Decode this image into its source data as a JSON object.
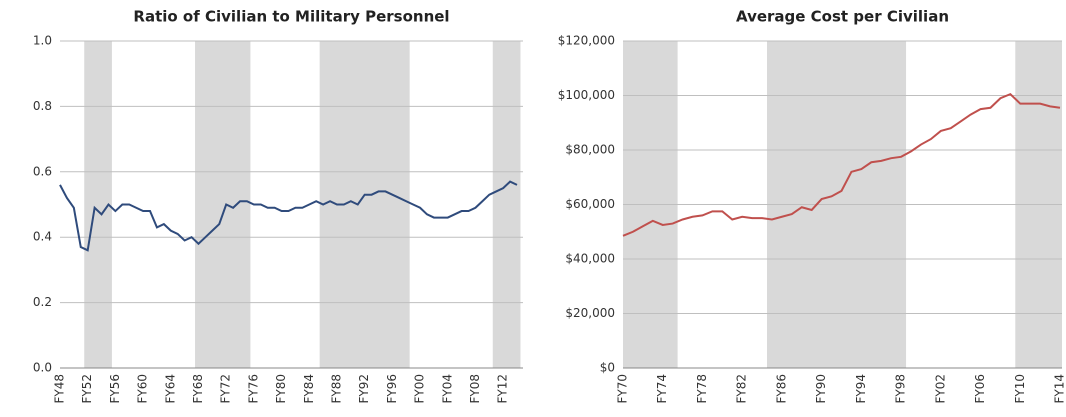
{
  "chart_data": [
    {
      "type": "line",
      "title": "Ratio of Civilian to Military Personnel",
      "categories": [
        "FY48",
        null,
        null,
        null,
        "FY52",
        null,
        null,
        null,
        "FY56",
        null,
        null,
        null,
        "FY60",
        null,
        null,
        null,
        "FY64",
        null,
        null,
        null,
        "FY68",
        null,
        null,
        null,
        "FY72",
        null,
        null,
        null,
        "FY76",
        null,
        null,
        null,
        "FY80",
        null,
        null,
        null,
        "FY84",
        null,
        null,
        null,
        "FY88",
        null,
        null,
        null,
        "FY92",
        null,
        null,
        null,
        "FY96",
        null,
        null,
        null,
        "FY00",
        null,
        null,
        null,
        "FY04",
        null,
        null,
        null,
        "FY08",
        null,
        null,
        null,
        "FY12",
        null,
        null
      ],
      "series": [
        {
          "color": "#2f4b7c",
          "values": [
            0.56,
            0.52,
            0.49,
            0.37,
            0.36,
            0.49,
            0.47,
            0.5,
            0.48,
            0.5,
            0.5,
            0.49,
            0.48,
            0.48,
            0.43,
            0.44,
            0.42,
            0.41,
            0.39,
            0.4,
            0.38,
            0.4,
            0.42,
            0.44,
            0.5,
            0.49,
            0.51,
            0.51,
            0.5,
            0.5,
            0.49,
            0.49,
            0.48,
            0.48,
            0.49,
            0.49,
            0.5,
            0.51,
            0.5,
            0.51,
            0.5,
            0.5,
            0.51,
            0.5,
            0.53,
            0.53,
            0.54,
            0.54,
            0.53,
            0.52,
            0.51,
            0.5,
            0.49,
            0.47,
            0.46,
            0.46,
            0.46,
            0.47,
            0.48,
            0.48,
            0.49,
            0.51,
            0.53,
            0.54,
            0.55,
            0.57,
            0.56
          ]
        }
      ],
      "shaded_ranges": [
        [
          4,
          7
        ],
        [
          20,
          27
        ],
        [
          38,
          50
        ],
        [
          63,
          66
        ]
      ],
      "ylim": [
        0,
        1
      ],
      "yticks": [
        {
          "value": 0,
          "label": "0.0"
        },
        0.2,
        0.4,
        0.6,
        0.8,
        {
          "value": 1,
          "label": "1.0"
        }
      ],
      "grid": true
    },
    {
      "type": "line",
      "title": "Average Cost per Civilian",
      "categories": [
        "FY70",
        null,
        null,
        null,
        "FY74",
        null,
        null,
        null,
        "FY78",
        null,
        null,
        null,
        "FY82",
        null,
        null,
        null,
        "FY86",
        null,
        null,
        null,
        "FY90",
        null,
        null,
        null,
        "FY94",
        null,
        null,
        null,
        "FY98",
        null,
        null,
        null,
        "FY02",
        null,
        null,
        null,
        "FY06",
        null,
        null,
        null,
        "FY10",
        null,
        null,
        null,
        "FY14"
      ],
      "series": [
        {
          "color": "#c0504d",
          "values": [
            48500,
            50000,
            52000,
            54000,
            52500,
            53000,
            54500,
            55500,
            56000,
            57500,
            57500,
            54500,
            55500,
            55000,
            55000,
            54500,
            55500,
            56500,
            59000,
            58000,
            62000,
            63000,
            65000,
            72000,
            73000,
            75500,
            76000,
            77000,
            77500,
            79500,
            82000,
            84000,
            87000,
            88000,
            90500,
            93000,
            95000,
            95500,
            99000,
            100500,
            97000,
            97000,
            97000,
            96000,
            95500
          ]
        }
      ],
      "shaded_ranges": [
        [
          0,
          5
        ],
        [
          15,
          28
        ],
        [
          40,
          44
        ]
      ],
      "ylim": [
        0,
        120000
      ],
      "yticks": [
        {
          "value": 0,
          "label": "$0"
        },
        {
          "value": 20000,
          "label": "$20,000"
        },
        {
          "value": 40000,
          "label": "$40,000"
        },
        {
          "value": 60000,
          "label": "$60,000"
        },
        {
          "value": 80000,
          "label": "$80,000"
        },
        {
          "value": 100000,
          "label": "$100,000"
        },
        {
          "value": 120000,
          "label": "$120,000"
        }
      ],
      "grid": true
    }
  ]
}
